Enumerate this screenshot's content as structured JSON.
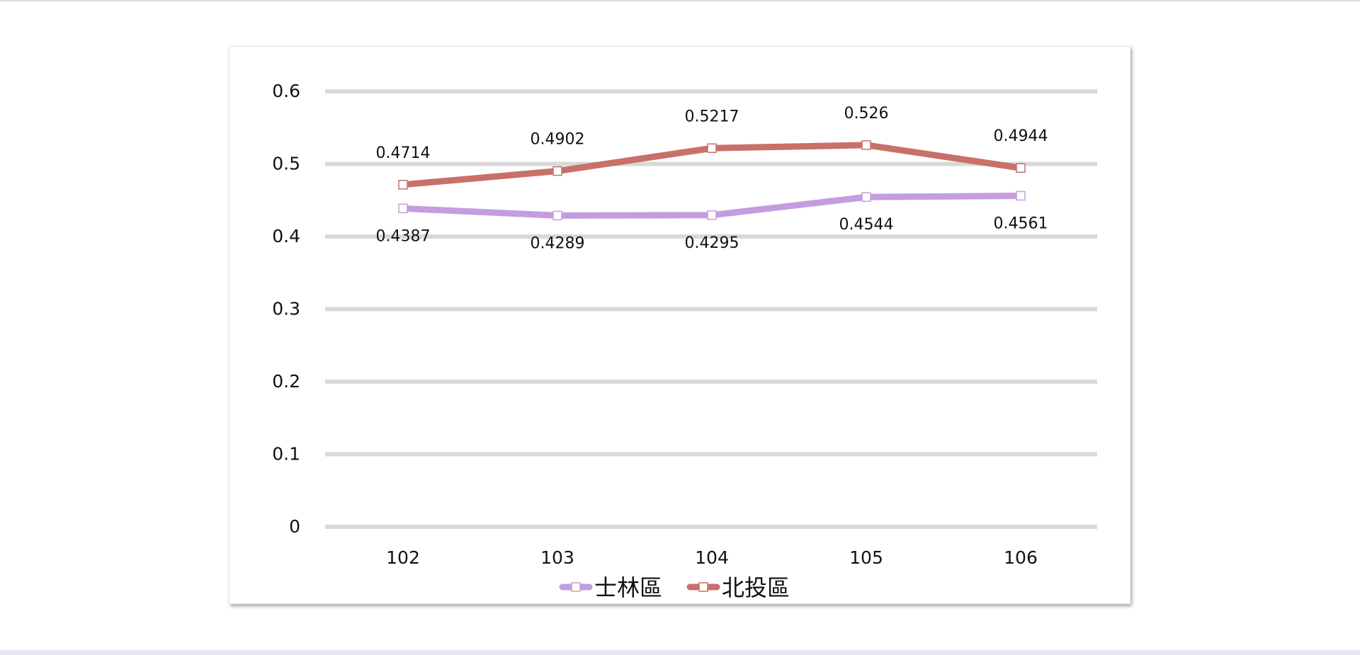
{
  "chart_data": {
    "type": "line",
    "categories": [
      "102",
      "103",
      "104",
      "105",
      "106"
    ],
    "series": [
      {
        "name": "士林區",
        "color": "#c39ddf",
        "values": [
          0.4387,
          0.4289,
          0.4295,
          0.4544,
          0.4561
        ],
        "labels": [
          "0.4387",
          "0.4289",
          "0.4295",
          "0.4544",
          "0.4561"
        ],
        "label_position": "below"
      },
      {
        "name": "北投區",
        "color": "#c8706a",
        "values": [
          0.4714,
          0.4902,
          0.5217,
          0.526,
          0.4944
        ],
        "labels": [
          "0.4714",
          "0.4902",
          "0.5217",
          "0.526",
          "0.4944"
        ],
        "label_position": "above"
      }
    ],
    "y_ticks": [
      "0",
      "0.1",
      "0.2",
      "0.3",
      "0.4",
      "0.5",
      "0.6"
    ],
    "ylim": [
      0,
      0.6
    ],
    "grid": true,
    "gridline_color": "#d9d9d9",
    "legend_position": "bottom",
    "marker": "hollow-square"
  }
}
